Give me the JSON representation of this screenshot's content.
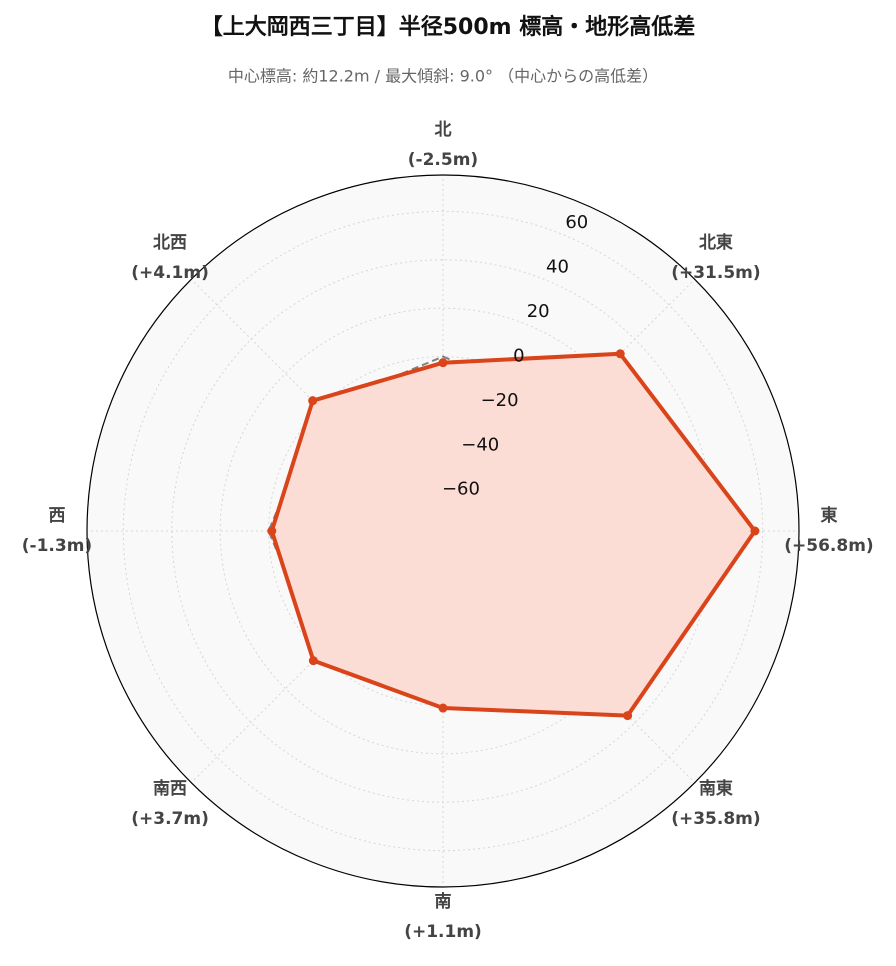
{
  "chart_data": {
    "type": "radar",
    "title": "【上大岡西三丁目】半径500m 標高・地形高低差",
    "subtitle": "中心標高: 約12.2m / 最大傾斜: 9.0° （中心からの高低差）",
    "categories": [
      "北",
      "北東",
      "東",
      "南東",
      "南",
      "南西",
      "西",
      "北西"
    ],
    "series": [
      {
        "color": "#808080",
        "values": [
          0,
          0,
          0,
          0,
          0,
          0,
          0,
          0
        ]
      },
      {
        "color": "#d9441a",
        "fill": "#fbddd5",
        "values": [
          -2.5,
          31.5,
          56.8,
          35.8,
          1.1,
          3.7,
          -1.3,
          4.1
        ],
        "value_labels": [
          "(-2.5m)",
          "(+31.5m)",
          "(+56.8m)",
          "(+35.8m)",
          "(+1.1m)",
          "(+3.7m)",
          "(-1.3m)",
          "(+4.1m)"
        ]
      }
    ],
    "ylim": [
      -72,
      75
    ],
    "yticks": [
      {
        "value": -60,
        "label": "−60"
      },
      {
        "value": -40,
        "label": "−40"
      },
      {
        "value": -20,
        "label": "−20"
      },
      0,
      20,
      40,
      60
    ],
    "grid": true
  }
}
